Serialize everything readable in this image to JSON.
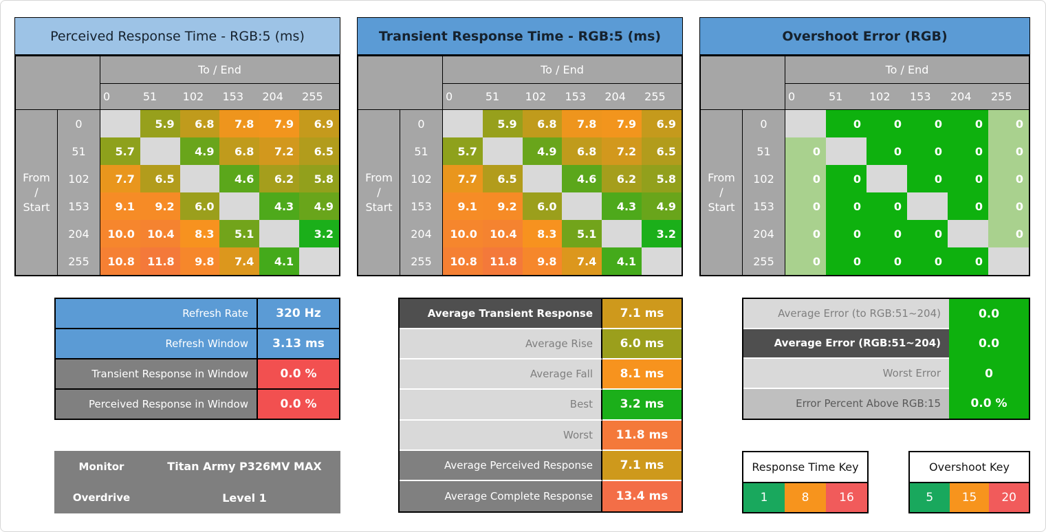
{
  "labels": {
    "to_end": "To / End",
    "from_start": "From / Start"
  },
  "chart_data": [
    {
      "id": "perceived",
      "type": "heatmap",
      "title": "Perceived Response Time - RGB:5 (ms)",
      "unit": "ms",
      "x_axis": "To / End",
      "y_axis": "From / Start",
      "categories": [
        0,
        51,
        102,
        153,
        204,
        255
      ],
      "format": "fixed1",
      "scale": "response",
      "values": [
        [
          null,
          5.9,
          6.8,
          7.8,
          7.9,
          6.9
        ],
        [
          5.7,
          null,
          4.9,
          6.8,
          7.2,
          6.5
        ],
        [
          7.7,
          6.5,
          null,
          4.6,
          6.2,
          5.8
        ],
        [
          9.1,
          9.2,
          6.0,
          null,
          4.3,
          4.9
        ],
        [
          10.0,
          10.4,
          8.3,
          5.1,
          null,
          3.2
        ],
        [
          10.8,
          11.8,
          9.8,
          7.4,
          4.1,
          null
        ]
      ]
    },
    {
      "id": "transient",
      "type": "heatmap",
      "title": "Transient Response Time - RGB:5 (ms)",
      "unit": "ms",
      "x_axis": "To / End",
      "y_axis": "From / Start",
      "categories": [
        0,
        51,
        102,
        153,
        204,
        255
      ],
      "format": "fixed1",
      "scale": "response",
      "values": [
        [
          null,
          5.9,
          6.8,
          7.8,
          7.9,
          6.9
        ],
        [
          5.7,
          null,
          4.9,
          6.8,
          7.2,
          6.5
        ],
        [
          7.7,
          6.5,
          null,
          4.6,
          6.2,
          5.8
        ],
        [
          9.1,
          9.2,
          6.0,
          null,
          4.3,
          4.9
        ],
        [
          10.0,
          10.4,
          8.3,
          5.1,
          null,
          3.2
        ],
        [
          10.8,
          11.8,
          9.8,
          7.4,
          4.1,
          null
        ]
      ]
    },
    {
      "id": "overshoot",
      "type": "heatmap",
      "title": "Overshoot Error (RGB)",
      "unit": "",
      "x_axis": "To / End",
      "y_axis": "From / Start",
      "categories": [
        0,
        51,
        102,
        153,
        204,
        255
      ],
      "format": "int",
      "scale": "overshoot_flat",
      "muted_columns": [
        0,
        5
      ],
      "values": [
        [
          null,
          0,
          0,
          0,
          0,
          0
        ],
        [
          0,
          null,
          0,
          0,
          0,
          0
        ],
        [
          0,
          0,
          null,
          0,
          0,
          0
        ],
        [
          0,
          0,
          0,
          null,
          0,
          0
        ],
        [
          0,
          0,
          0,
          0,
          null,
          0
        ],
        [
          0,
          0,
          0,
          0,
          0,
          null
        ]
      ]
    }
  ],
  "colors": {
    "scale_stops": [
      {
        "v": 3,
        "c": "#12B01A"
      },
      {
        "v": 8,
        "c": "#F7941D"
      },
      {
        "v": 16,
        "c": "#F15B5B"
      }
    ],
    "bright_green": "#0EB10E",
    "muted_green": "#A9D18E",
    "diagonal_gray": "#D9D9D9",
    "header_gray": "#A6A6A6",
    "blue": "#5B9BD5",
    "light_blue": "#9DC3E6",
    "red": "#F25050"
  },
  "summary_left": {
    "rows": [
      {
        "label": "Refresh Rate",
        "value": "320 Hz",
        "label_style": "blue",
        "value_bg": "#5B9BD5"
      },
      {
        "label": "Refresh Window",
        "value": "3.13 ms",
        "label_style": "blue",
        "value_bg": "#5B9BD5"
      },
      {
        "label": "Transient Response in Window",
        "value": "0.0 %",
        "label_style": "mid",
        "value_bg": "#F25050"
      },
      {
        "label": "Perceived Response in Window",
        "value": "0.0 %",
        "label_style": "mid",
        "value_bg": "#F25050"
      }
    ]
  },
  "monitor_info": {
    "rows": [
      {
        "label": "Monitor",
        "value": "Titan Army P326MV MAX",
        "label_style": "monitor"
      },
      {
        "label": "Overdrive",
        "value": "Level 1",
        "label_style": "monitor"
      }
    ]
  },
  "summary_mid": {
    "rows": [
      {
        "label": "Average Transient Response",
        "value": "7.1 ms",
        "value_num": 7.1,
        "label_style": "dark"
      },
      {
        "label": "Average Rise",
        "value": "6.0 ms",
        "value_num": 6.0,
        "label_style": "light"
      },
      {
        "label": "Average Fall",
        "value": "8.1 ms",
        "value_num": 8.1,
        "label_style": "light"
      },
      {
        "label": "Best",
        "value": "3.2 ms",
        "value_num": 3.2,
        "label_style": "light"
      },
      {
        "label": "Worst",
        "value": "11.8 ms",
        "value_num": 11.8,
        "label_style": "light"
      },
      {
        "label": "Average Perceived Response",
        "value": "7.1 ms",
        "value_num": 7.1,
        "label_style": "mid"
      },
      {
        "label": "Average Complete Response",
        "value": "13.4 ms",
        "value_num": 13.4,
        "label_style": "mid"
      }
    ]
  },
  "summary_right": {
    "rows": [
      {
        "label": "Average Error (to RGB:51~204)",
        "value": "0.0",
        "label_style": "light",
        "value_bg": "#0EB10E"
      },
      {
        "label": "Average Error (RGB:51~204)",
        "value": "0.0",
        "label_style": "dark",
        "value_bg": "#0EB10E"
      },
      {
        "label": "Worst Error",
        "value": "0",
        "label_style": "light",
        "value_bg": "#0EB10E"
      },
      {
        "label": "Error Percent Above RGB:15",
        "value": "0.0 %",
        "label_style": "mid2",
        "value_bg": "#0EB10E"
      }
    ]
  },
  "keys": {
    "response": {
      "title": "Response Time Key",
      "stops": [
        {
          "label": "1",
          "color": "#19A85D"
        },
        {
          "label": "8",
          "color": "#F7941D"
        },
        {
          "label": "16",
          "color": "#F15B5B"
        }
      ]
    },
    "overshoot": {
      "title": "Overshoot Key",
      "stops": [
        {
          "label": "5",
          "color": "#19A85D"
        },
        {
          "label": "15",
          "color": "#F7941D"
        },
        {
          "label": "20",
          "color": "#F15B5B"
        }
      ]
    }
  }
}
